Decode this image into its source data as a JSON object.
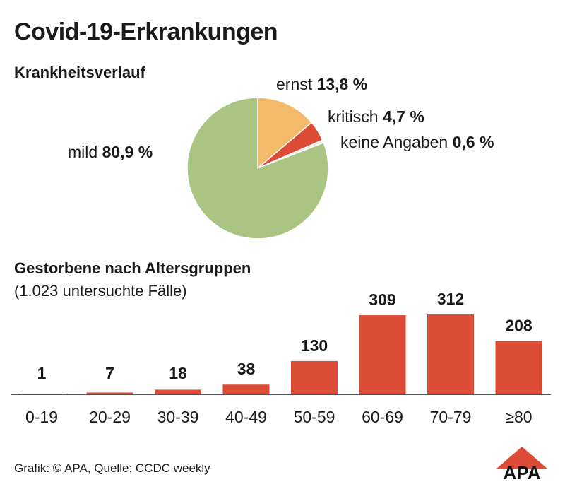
{
  "title": "Covid-19-Erkrankungen",
  "pie_section_title": "Krankheitsverlauf",
  "bar_section_title": "Gestorbene nach Altersgruppen",
  "bar_section_note": "(1.023 untersuchte Fälle)",
  "footer": "Grafik: © APA, Quelle: CCDC weekly",
  "logo_text": "APA",
  "colors": {
    "mild": "#a9c483",
    "ernst": "#f5b96a",
    "kritisch": "#dc4b35",
    "keine_angaben": "#e8e8e8",
    "bar": "#dc4b35"
  },
  "chart_data": [
    {
      "type": "pie",
      "title": "Krankheitsverlauf",
      "slices": [
        {
          "name": "ernst",
          "value": 13.8,
          "label": "13,8 %"
        },
        {
          "name": "kritisch",
          "value": 4.7,
          "label": "4,7 %"
        },
        {
          "name": "keine Angaben",
          "value": 0.6,
          "label": "0,6 %"
        },
        {
          "name": "mild",
          "value": 80.9,
          "label": "80,9 %"
        }
      ]
    },
    {
      "type": "bar",
      "title": "Gestorbene nach Altersgruppen",
      "subtitle": "(1.023 untersuchte Fälle)",
      "categories": [
        "0-19",
        "20-29",
        "30-39",
        "40-49",
        "50-59",
        "60-69",
        "70-79",
        "≥80"
      ],
      "values": [
        1,
        7,
        18,
        38,
        130,
        309,
        312,
        208
      ],
      "ylim": [
        0,
        312
      ]
    }
  ]
}
